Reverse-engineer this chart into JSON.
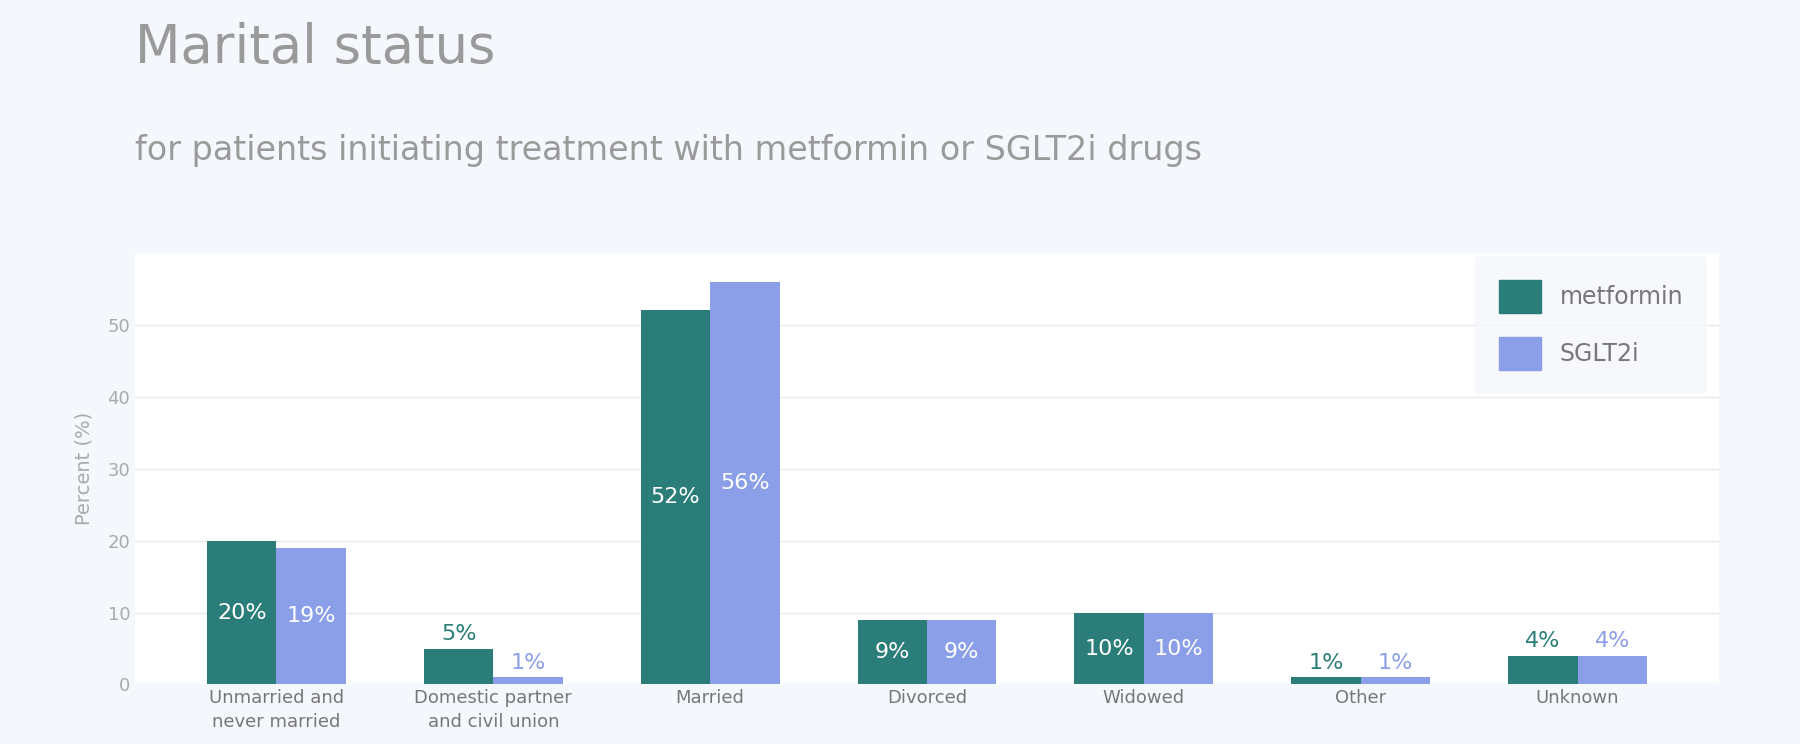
{
  "title": "Marital status",
  "subtitle": "for patients initiating treatment with metformin or SGLT2i drugs",
  "categories": [
    "Unmarried and\nnever married",
    "Domestic partner\nand civil union",
    "Married",
    "Divorced",
    "Widowed",
    "Other",
    "Unknown"
  ],
  "metformin_values": [
    20,
    5,
    52,
    9,
    10,
    1,
    4
  ],
  "sglt2i_values": [
    19,
    1,
    56,
    9,
    10,
    1,
    4
  ],
  "metformin_color": "#2a7d78",
  "sglt2i_color": "#8b9ee8",
  "metformin_label": "metformin",
  "sglt2i_label": "SGLT2i",
  "ylabel": "Percent (%)",
  "ylim": [
    0,
    60
  ],
  "yticks": [
    0,
    10,
    20,
    30,
    40,
    50
  ],
  "background_color": "#f4f7fb",
  "plot_bg_color": "#ffffff",
  "title_color": "#9a9a9a",
  "subtitle_color": "#9a9a9a",
  "bar_label_color_white": "#ffffff",
  "bar_label_color_met": "#2a7d78",
  "bar_label_color_sglt": "#8b9ee8",
  "title_fontsize": 38,
  "subtitle_fontsize": 24,
  "legend_fontsize": 17,
  "axis_label_fontsize": 14,
  "tick_fontsize": 13,
  "bar_label_fontsize": 16,
  "bar_width": 0.32,
  "ytick_color": "#aaaaaa",
  "xtick_color": "#777777",
  "grid_color": "#e8e8e8"
}
